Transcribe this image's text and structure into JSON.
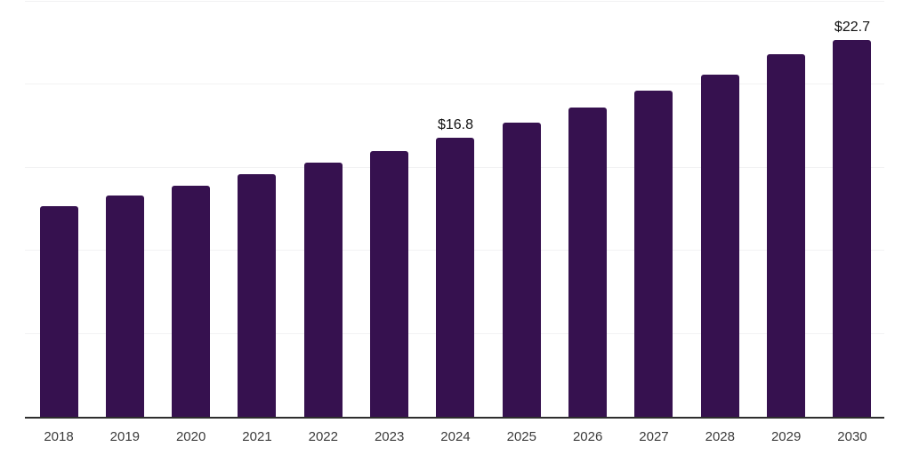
{
  "chart_data": {
    "type": "bar",
    "categories": [
      "2018",
      "2019",
      "2020",
      "2021",
      "2022",
      "2023",
      "2024",
      "2025",
      "2026",
      "2027",
      "2028",
      "2029",
      "2030"
    ],
    "values": [
      12.7,
      13.3,
      13.9,
      14.6,
      15.3,
      16.0,
      16.8,
      17.7,
      18.6,
      19.6,
      20.6,
      21.8,
      22.7
    ],
    "point_labels": [
      "",
      "",
      "",
      "",
      "",
      "",
      "$16.8",
      "",
      "",
      "",
      "",
      "",
      "$22.7"
    ],
    "title": "",
    "xlabel": "",
    "ylabel": "",
    "ylim": [
      0,
      25
    ],
    "grid_step": 5,
    "grid_on": true,
    "legend": "none",
    "colors": {
      "bar": "#36114F",
      "axis": "#2E2E2E",
      "gridline": "#F2F2F3",
      "tick_label": "#3B3B3B",
      "value_label": "#111111",
      "background": "#FFFFFF"
    }
  }
}
